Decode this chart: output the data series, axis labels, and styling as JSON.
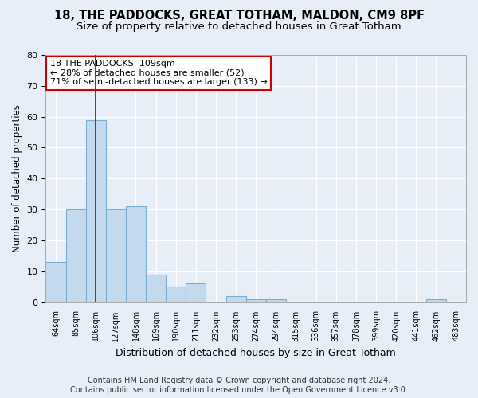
{
  "title1": "18, THE PADDOCKS, GREAT TOTHAM, MALDON, CM9 8PF",
  "title2": "Size of property relative to detached houses in Great Totham",
  "xlabel": "Distribution of detached houses by size in Great Totham",
  "ylabel": "Number of detached properties",
  "categories": [
    "64sqm",
    "85sqm",
    "106sqm",
    "127sqm",
    "148sqm",
    "169sqm",
    "190sqm",
    "211sqm",
    "232sqm",
    "253sqm",
    "274sqm",
    "294sqm",
    "315sqm",
    "336sqm",
    "357sqm",
    "378sqm",
    "399sqm",
    "420sqm",
    "441sqm",
    "462sqm",
    "483sqm"
  ],
  "values": [
    13,
    30,
    59,
    30,
    31,
    9,
    5,
    6,
    0,
    2,
    1,
    1,
    0,
    0,
    0,
    0,
    0,
    0,
    0,
    1,
    0
  ],
  "bar_color": "#c5d9ee",
  "bar_edge_color": "#7aadd4",
  "vline_x": 2,
  "vline_color": "#cc0000",
  "annotation_line1": "18 THE PADDOCKS: 109sqm",
  "annotation_line2": "← 28% of detached houses are smaller (52)",
  "annotation_line3": "71% of semi-detached houses are larger (133) →",
  "annotation_box_color": "white",
  "annotation_box_edge_color": "#cc0000",
  "ylim": [
    0,
    80
  ],
  "yticks": [
    0,
    10,
    20,
    30,
    40,
    50,
    60,
    70,
    80
  ],
  "background_color": "#e8eef8",
  "grid_color": "white",
  "footer_line1": "Contains HM Land Registry data © Crown copyright and database right 2024.",
  "footer_line2": "Contains public sector information licensed under the Open Government Licence v3.0.",
  "title1_fontsize": 10.5,
  "title2_fontsize": 9.5,
  "annotation_fontsize": 8,
  "footer_fontsize": 7
}
